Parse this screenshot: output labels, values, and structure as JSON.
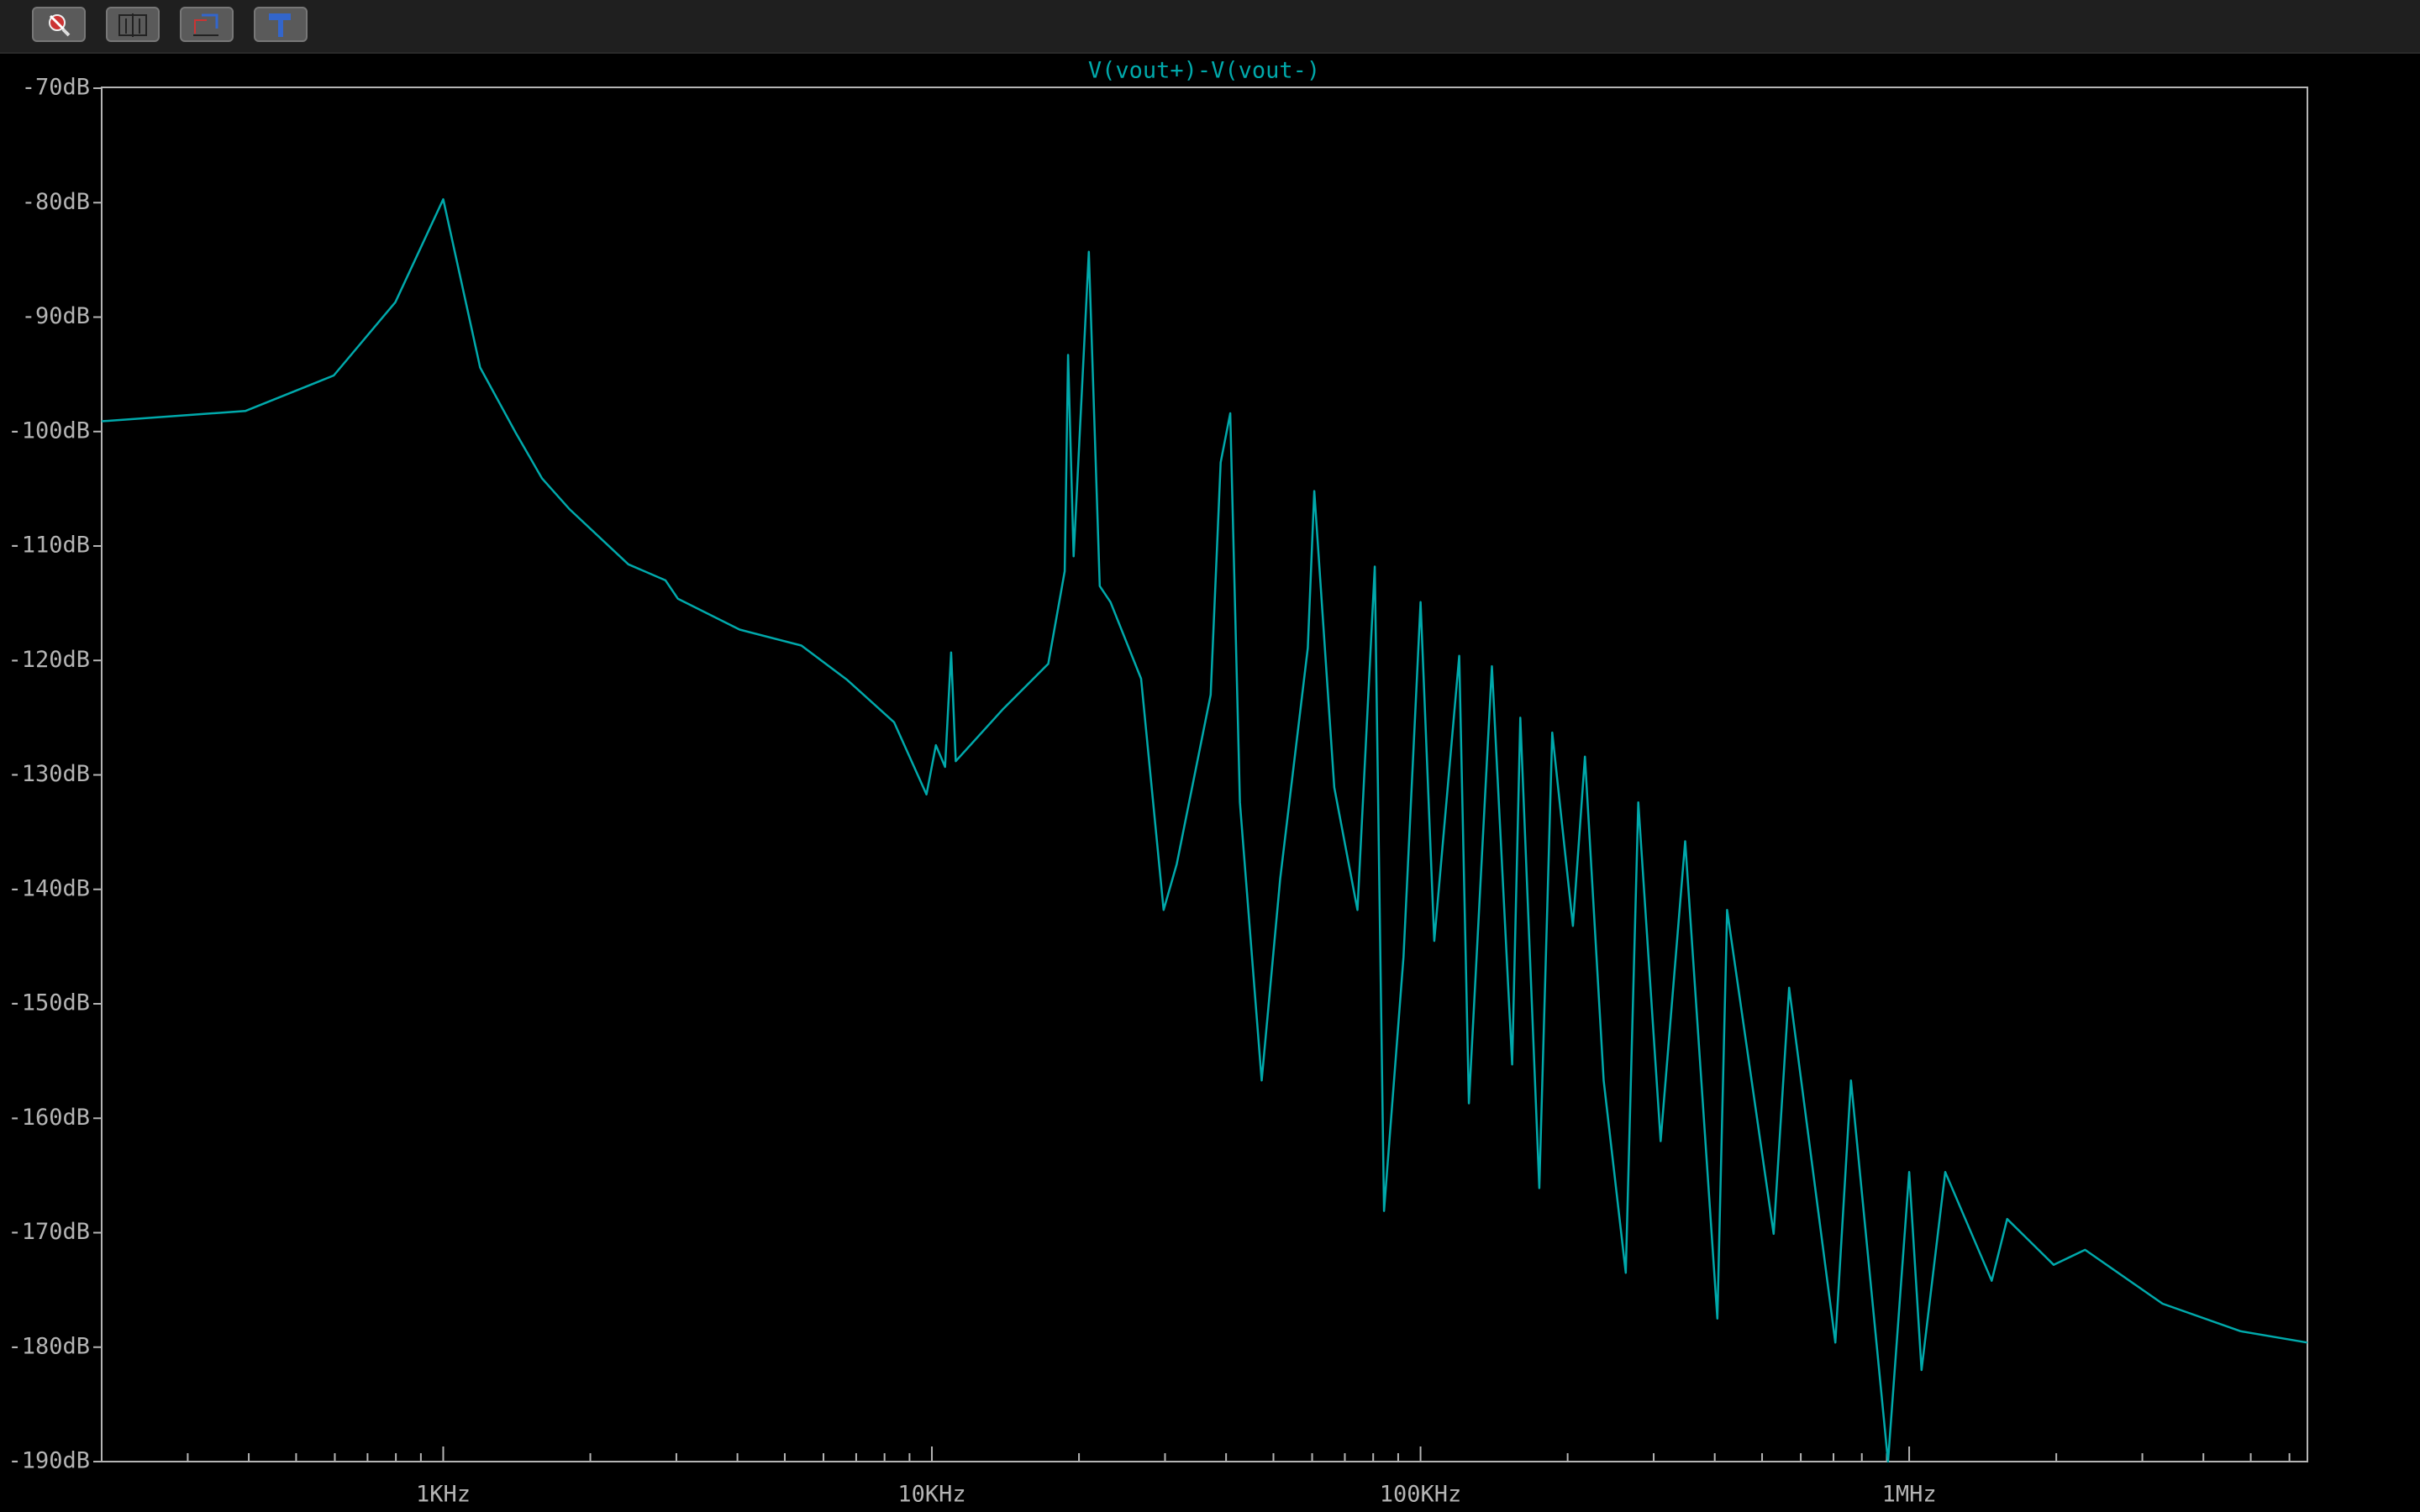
{
  "chart_data": {
    "type": "line",
    "title": "V(vout+)-V(vout-)",
    "color": "#00a9ab",
    "xscale": "log",
    "xlim": [
      200,
      6530000
    ],
    "ylim": [
      -190,
      -70
    ],
    "xticks": [
      {
        "value": 1000,
        "label": "1KHz"
      },
      {
        "value": 10000,
        "label": "10KHz"
      },
      {
        "value": 100000,
        "label": "100KHz"
      },
      {
        "value": 1000000,
        "label": "1MHz"
      }
    ],
    "xminorticks": [
      300,
      400,
      500,
      600,
      700,
      800,
      900,
      2000,
      3000,
      4000,
      5000,
      6000,
      7000,
      8000,
      9000,
      20000,
      30000,
      40000,
      50000,
      60000,
      70000,
      80000,
      90000,
      200000,
      300000,
      400000,
      500000,
      600000,
      700000,
      800000,
      900000,
      2000000,
      3000000,
      4000000,
      5000000,
      6000000
    ],
    "yticks": [
      {
        "value": -70,
        "label": "-70dB"
      },
      {
        "value": -80,
        "label": "-80dB"
      },
      {
        "value": -90,
        "label": "-90dB"
      },
      {
        "value": -100,
        "label": "-100dB"
      },
      {
        "value": -110,
        "label": "-110dB"
      },
      {
        "value": -120,
        "label": "-120dB"
      },
      {
        "value": -130,
        "label": "-130dB"
      },
      {
        "value": -140,
        "label": "-140dB"
      },
      {
        "value": -150,
        "label": "-150dB"
      },
      {
        "value": -160,
        "label": "-160dB"
      },
      {
        "value": -170,
        "label": "-170dB"
      },
      {
        "value": -180,
        "label": "-180dB"
      },
      {
        "value": -190,
        "label": "-190dB"
      }
    ],
    "x": [
      200,
      394,
      597,
      798,
      1000,
      1190,
      1407,
      1593,
      1815,
      2393,
      2850,
      3021,
      4041,
      5406,
      6708,
      8366,
      9750,
      10190,
      10640,
      10950,
      11190,
      13950,
      17300,
      18700,
      19000,
      19500,
      20950,
      22060,
      23200,
      26800,
      29800,
      31700,
      37200,
      39000,
      40800,
      42700,
      47300,
      51600,
      58800,
      60600,
      66600,
      74300,
      80600,
      84200,
      92300,
      100000,
      106700,
      120000,
      125600,
      140000,
      154000,
      160000,
      175000,
      186000,
      205000,
      217000,
      237000,
      263000,
      279000,
      310000,
      348000,
      405000,
      424000,
      528000,
      568000,
      706000,
      760000,
      905000,
      1000000,
      1060000,
      1185000,
      1475000,
      1587000,
      1975000,
      2290000,
      3300000,
      4760000,
      6530000
    ],
    "values": [
      -99.1,
      -98.2,
      -95.1,
      -88.7,
      -79.7,
      -94.4,
      -100.1,
      -104.1,
      -106.8,
      -111.6,
      -113.0,
      -114.6,
      -117.3,
      -118.7,
      -121.7,
      -125.4,
      -131.7,
      -127.4,
      -129.3,
      -119.3,
      -128.8,
      -124.3,
      -120.3,
      -112.2,
      -93.3,
      -110.9,
      -84.3,
      -113.5,
      -114.9,
      -121.6,
      -141.8,
      -137.8,
      -123.0,
      -102.7,
      -98.4,
      -132.4,
      -156.7,
      -139.1,
      -118.9,
      -105.2,
      -131.1,
      -141.8,
      -111.8,
      -168.1,
      -145.9,
      -114.9,
      -144.5,
      -119.6,
      -158.7,
      -120.5,
      -155.3,
      -125.0,
      -166.1,
      -126.3,
      -143.2,
      -128.4,
      -156.7,
      -173.5,
      -132.4,
      -162.0,
      -135.8,
      -177.5,
      -141.8,
      -170.1,
      -148.6,
      -179.6,
      -156.7,
      -190.0,
      -164.7,
      -182.0,
      -164.7,
      -174.2,
      -168.8,
      -172.8,
      -171.5,
      -176.2,
      -178.6,
      -179.6
    ]
  }
}
